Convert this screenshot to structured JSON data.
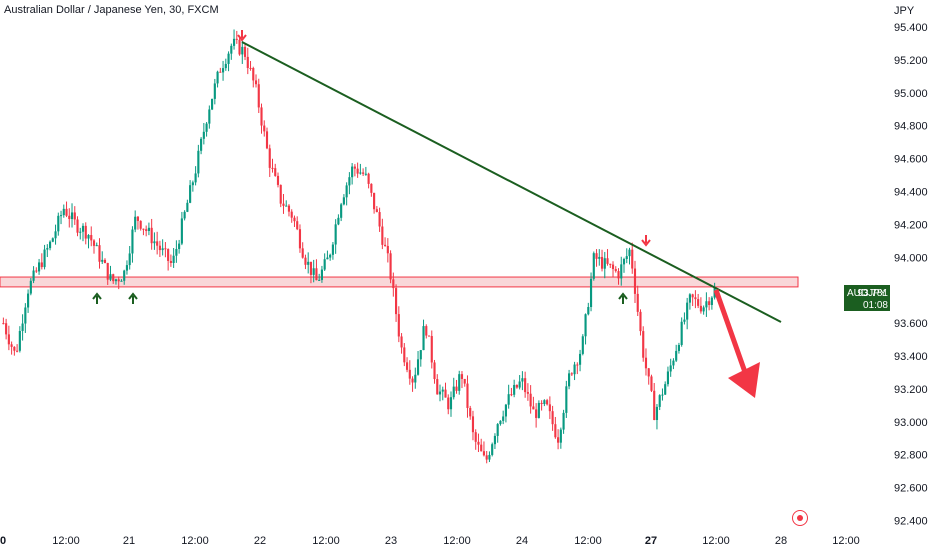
{
  "header": {
    "title": "Australian Dollar / Japanese Yen, 30, FXCM",
    "currency": "JPY"
  },
  "price_tag": {
    "symbol": "AUDJPY",
    "price": "93.781",
    "countdown": "01:08"
  },
  "colors": {
    "up": "#089981",
    "down": "#f23645",
    "trendline": "#1b5e20",
    "zone_fill": "#f7c9cc",
    "zone_border": "#f23645",
    "arrow": "#f23645",
    "support_arrow": "#1b5e20"
  },
  "chart_data": {
    "type": "candlestick",
    "symbol": "AUDJPY",
    "timeframe": "30",
    "source": "FXCM",
    "ylim": [
      92.35,
      95.5
    ],
    "y_ticks": [
      "95.400",
      "95.200",
      "95.000",
      "94.800",
      "94.600",
      "94.400",
      "94.200",
      "94.000",
      "93.600",
      "93.400",
      "93.200",
      "93.000",
      "92.800",
      "92.600",
      "92.400"
    ],
    "x_ticks": [
      {
        "label": "0",
        "bold": true
      },
      {
        "label": "12:00",
        "bold": false
      },
      {
        "label": "21",
        "bold": false
      },
      {
        "label": "12:00",
        "bold": false
      },
      {
        "label": "22",
        "bold": false
      },
      {
        "label": "12:00",
        "bold": false
      },
      {
        "label": "23",
        "bold": false
      },
      {
        "label": "12:00",
        "bold": false
      },
      {
        "label": "24",
        "bold": false
      },
      {
        "label": "12:00",
        "bold": false
      },
      {
        "label": "27",
        "bold": true
      },
      {
        "label": "12:00",
        "bold": false
      },
      {
        "label": "28",
        "bold": false
      },
      {
        "label": "12:00",
        "bold": false
      }
    ],
    "price_path": [
      93.6,
      93.4,
      93.8,
      93.95,
      94.1,
      94.3,
      94.2,
      94.15,
      94.0,
      93.85,
      93.9,
      94.25,
      94.15,
      94.05,
      93.95,
      94.25,
      94.55,
      94.9,
      95.15,
      95.3,
      95.25,
      95.0,
      94.6,
      94.35,
      94.25,
      94.0,
      93.85,
      94.0,
      94.35,
      94.55,
      94.5,
      94.25,
      93.95,
      93.45,
      93.25,
      93.6,
      93.2,
      93.1,
      93.3,
      92.9,
      92.75,
      93.0,
      93.15,
      93.25,
      93.05,
      93.1,
      92.9,
      93.3,
      93.45,
      94.0,
      93.95,
      93.9,
      94.05,
      93.45,
      93.05,
      93.25,
      93.5,
      93.75,
      93.7,
      93.8
    ],
    "resistance_zone": [
      93.82,
      93.88
    ],
    "trendline": {
      "from": [
        0.2597,
        95.32
      ],
      "to": [
        0.8355,
        93.6
      ]
    },
    "current_price": 93.781
  }
}
